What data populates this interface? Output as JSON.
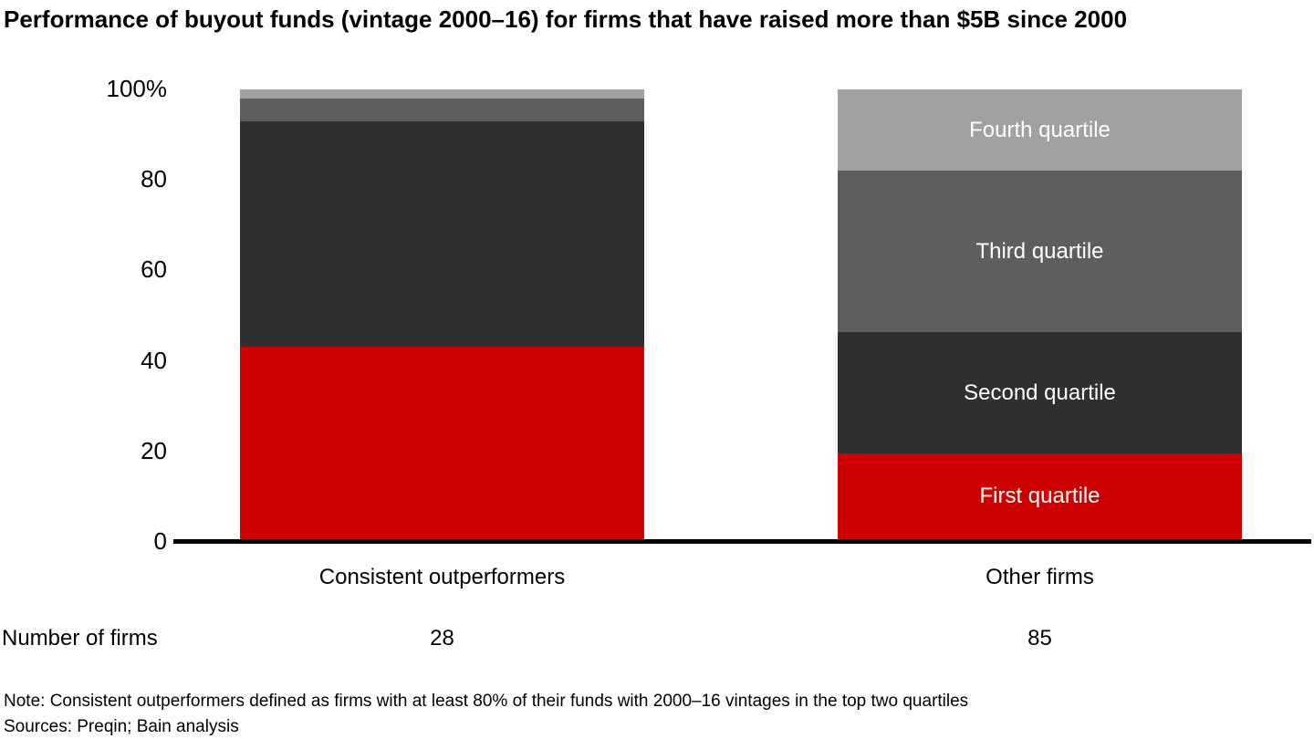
{
  "chart_data": {
    "type": "bar",
    "stacked": true,
    "title": "Performance of buyout funds (vintage 2000–16) for firms that have raised more than $5B since 2000",
    "unit": "%",
    "categories": [
      "Consistent outperformers",
      "Other firms"
    ],
    "series": [
      {
        "name": "First quartile",
        "color": "#cc0000",
        "values": [
          43,
          19
        ]
      },
      {
        "name": "Second quartile",
        "color": "#2f3030",
        "values": [
          50,
          27
        ]
      },
      {
        "name": "Third quartile",
        "color": "#5d5e5e",
        "values": [
          5,
          36
        ]
      },
      {
        "name": "Fourth quartile",
        "color": "#a0a1a1",
        "values": [
          2,
          18
        ]
      }
    ],
    "segment_labels_on_category_index": 1,
    "segment_label_color": "#ffffff",
    "y_axis": {
      "range": [
        0,
        100
      ],
      "tick_values": [
        0,
        20,
        40,
        60,
        80,
        100
      ],
      "tick_labels": [
        "0",
        "20",
        "40",
        "60",
        "80",
        "100%"
      ],
      "grid": false
    },
    "legend_position": "none",
    "number_of_firms": {
      "label": "Number of firms",
      "values": [
        "28",
        "85"
      ]
    }
  },
  "notes": {
    "note": "Note: Consistent outperformers defined as firms with at least 80% of their funds with 2000–16 vintages in the top two quartiles",
    "sources": "Sources: Preqin; Bain analysis"
  }
}
